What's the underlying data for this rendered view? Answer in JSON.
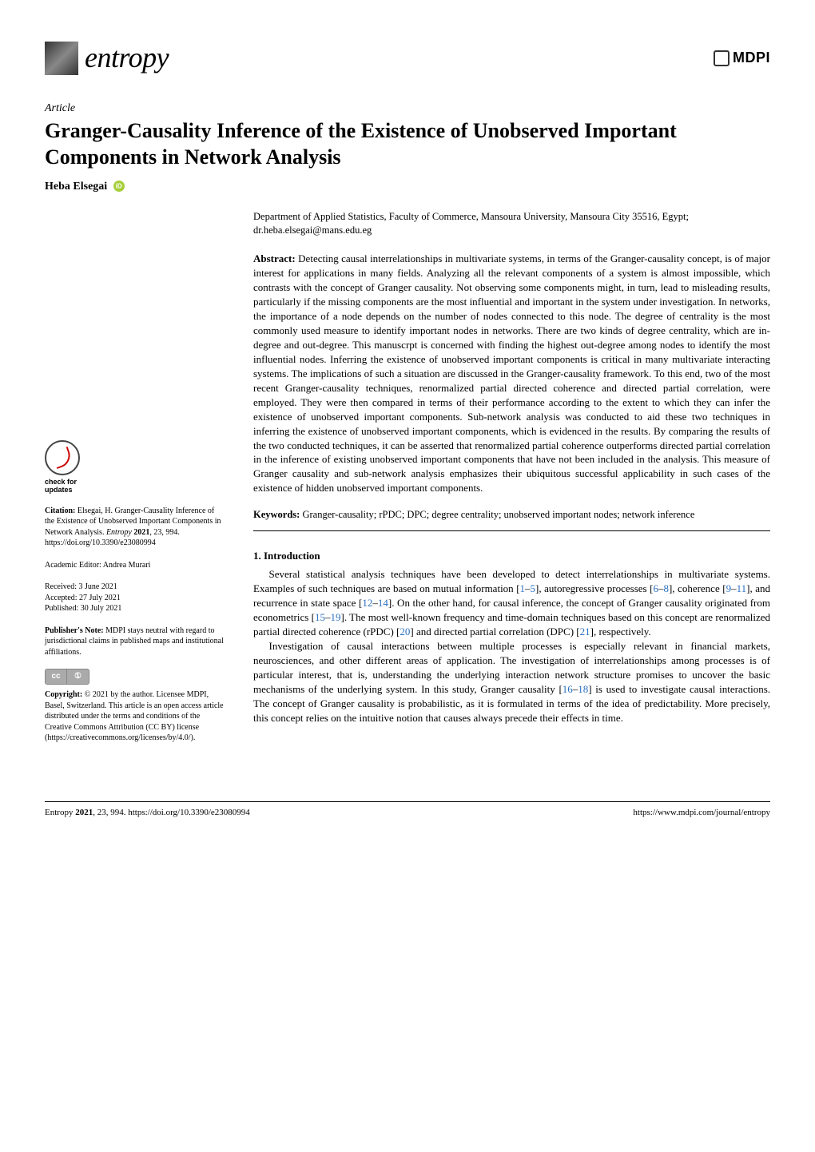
{
  "journal": {
    "name": "entropy",
    "publisher": "MDPI"
  },
  "article_type": "Article",
  "title": "Granger-Causality Inference of the Existence of Unobserved Important Components in Network Analysis",
  "author": "Heba Elsegai",
  "affiliation": "Department of Applied Statistics, Faculty of Commerce, Mansoura University, Mansoura City 35516, Egypt; dr.heba.elsegai@mans.edu.eg",
  "abstract_label": "Abstract:",
  "abstract": "Detecting causal interrelationships in multivariate systems, in terms of the Granger-causality concept, is of major interest for applications in many fields. Analyzing all the relevant components of a system is almost impossible, which contrasts with the concept of Granger causality. Not observing some components might, in turn, lead to misleading results, particularly if the missing components are the most influential and important in the system under investigation. In networks, the importance of a node depends on the number of nodes connected to this node. The degree of centrality is the most commonly used measure to identify important nodes in networks. There are two kinds of degree centrality, which are in-degree and out-degree. This manuscrpt is concerned with finding the highest out-degree among nodes to identify the most influential nodes. Inferring the existence of unobserved important components is critical in many multivariate interacting systems. The implications of such a situation are discussed in the Granger-causality framework. To this end, two of the most recent Granger-causality techniques, renormalized partial directed coherence and directed partial correlation, were employed. They were then compared in terms of their performance according to the extent to which they can infer the existence of unobserved important components. Sub-network analysis was conducted to aid these two techniques in inferring the existence of unobserved important components, which is evidenced in the results. By comparing the results of the two conducted techniques, it can be asserted that renormalized partial coherence outperforms directed partial correlation in the inference of existing unobserved important components that have not been included in the analysis. This measure of Granger causality and sub-network analysis emphasizes their ubiquitous successful applicability in such cases of the existence of hidden unobserved important components.",
  "keywords_label": "Keywords:",
  "keywords": "Granger-causality; rPDC; DPC; degree centrality; unobserved important nodes; network inference",
  "section1": {
    "title": "1. Introduction"
  },
  "body": {
    "p1a": "Several statistical analysis techniques have been developed to detect interrelationships in multivariate systems. Examples of such techniques are based on mutual information [",
    "r1": "1",
    "p1b": "–",
    "r2": "5",
    "p1c": "], autoregressive processes [",
    "r3": "6",
    "p1d": "–",
    "r4": "8",
    "p1e": "], coherence [",
    "r5": "9",
    "p1f": "–",
    "r6": "11",
    "p1g": "], and recurrence in state space [",
    "r7": "12",
    "p1h": "–",
    "r8": "14",
    "p1i": "]. On the other hand, for causal inference, the concept of Granger causality originated from econometrics [",
    "r9": "15",
    "p1j": "–",
    "r10": "19",
    "p1k": "]. The most well-known frequency and time-domain techniques based on this concept are renormalized partial directed coherence (rPDC) [",
    "r11": "20",
    "p1l": "] and directed partial correlation (DPC) [",
    "r12": "21",
    "p1m": "], respectively.",
    "p2a": "Investigation of causal interactions between multiple processes is especially relevant in financial markets, neurosciences, and other different areas of application. The investigation of interrelationships among processes is of particular interest, that is, understanding the underlying interaction network structure promises to uncover the basic mechanisms of the underlying system. In this study, Granger causality [",
    "r13": "16",
    "p2b": "–",
    "r14": "18",
    "p2c": "] is used to investigate causal interactions. The concept of Granger causality is probabilistic, as it is formulated in terms of the idea of predictability. More precisely, this concept relies on the intuitive notion that causes always precede their effects in time."
  },
  "sidebar": {
    "updates_check": "check for",
    "updates_bold": "updates",
    "citation_label": "Citation:",
    "citation_text": " Elsegai, H. Granger-Causality Inference of the Existence of Unobserved Important Components in Network Analysis. ",
    "citation_ital": "Entropy ",
    "citation_bold": "2021",
    "citation_rest": ", 23, 994. https://doi.org/10.3390/e23080994",
    "editor": "Academic Editor: Andrea Murari",
    "received": "Received: 3 June 2021",
    "accepted": "Accepted: 27 July 2021",
    "published": "Published: 30 July 2021",
    "pubnote_label": "Publisher's Note:",
    "pubnote_text": " MDPI stays neutral with regard to jurisdictional claims in published maps and institutional affiliations.",
    "copyright_label": "Copyright:",
    "copyright_text": " © 2021 by the author. Licensee MDPI, Basel, Switzerland. This article is an open access article distributed under the terms and conditions of the Creative Commons Attribution (CC BY) license (https://creativecommons.org/licenses/by/4.0/)."
  },
  "footer": {
    "left_ital": "Entropy ",
    "left_bold": "2021",
    "left_rest": ", 23, 994. https://doi.org/10.3390/e23080994",
    "right": "https://www.mdpi.com/journal/entropy"
  },
  "colors": {
    "link": "#2a70c2",
    "orcid": "#a6ce39"
  }
}
